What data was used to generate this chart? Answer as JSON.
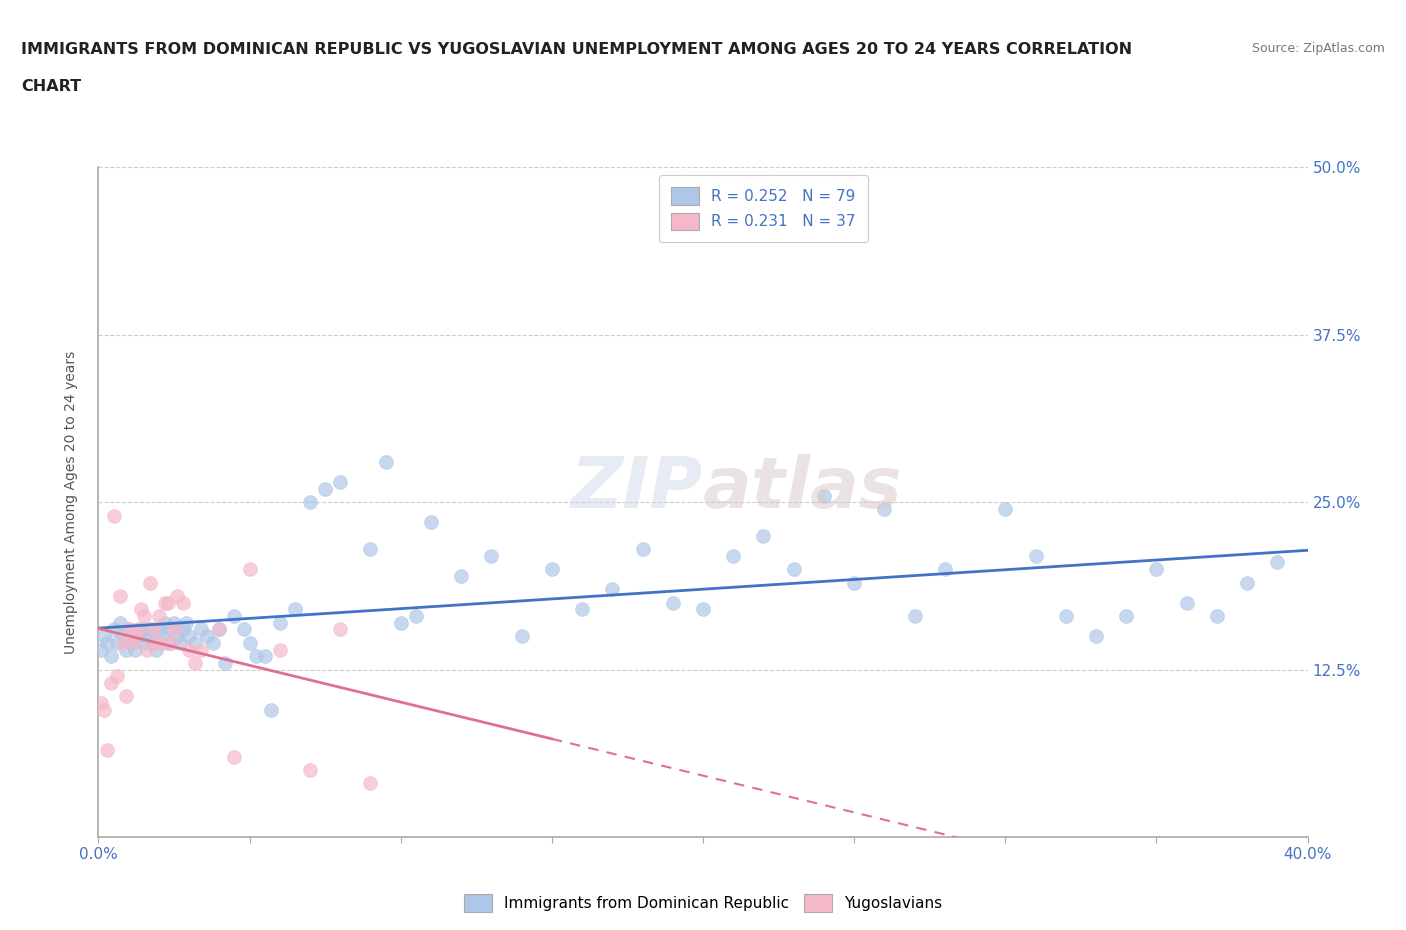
{
  "title_line1": "IMMIGRANTS FROM DOMINICAN REPUBLIC VS YUGOSLAVIAN UNEMPLOYMENT AMONG AGES 20 TO 24 YEARS CORRELATION",
  "title_line2": "CHART",
  "source": "Source: ZipAtlas.com",
  "ylabel_label": "Unemployment Among Ages 20 to 24 years",
  "legend_labels": [
    "Immigrants from Dominican Republic",
    "Yugoslavians"
  ],
  "r_blue": 0.252,
  "n_blue": 79,
  "r_pink": 0.231,
  "n_pink": 37,
  "blue_color": "#aec6e8",
  "blue_line_color": "#4472c4",
  "pink_color": "#f4b8c8",
  "pink_line_color": "#e07090",
  "axis_label_color": "#4472c4",
  "title_color": "#222222",
  "xlim": [
    0.0,
    0.4
  ],
  "ylim": [
    0.0,
    0.5
  ],
  "grid_color": "#c8c8c8",
  "blue_scatter_x": [
    0.001,
    0.002,
    0.003,
    0.004,
    0.005,
    0.006,
    0.007,
    0.008,
    0.009,
    0.01,
    0.011,
    0.012,
    0.013,
    0.014,
    0.015,
    0.016,
    0.017,
    0.018,
    0.019,
    0.02,
    0.021,
    0.022,
    0.023,
    0.024,
    0.025,
    0.026,
    0.027,
    0.028,
    0.029,
    0.03,
    0.032,
    0.034,
    0.036,
    0.038,
    0.04,
    0.042,
    0.045,
    0.05,
    0.055,
    0.06,
    0.065,
    0.07,
    0.075,
    0.08,
    0.09,
    0.1,
    0.11,
    0.12,
    0.13,
    0.14,
    0.15,
    0.16,
    0.17,
    0.18,
    0.19,
    0.2,
    0.21,
    0.22,
    0.23,
    0.24,
    0.25,
    0.26,
    0.27,
    0.28,
    0.3,
    0.31,
    0.32,
    0.33,
    0.34,
    0.35,
    0.36,
    0.37,
    0.38,
    0.39,
    0.048,
    0.052,
    0.057,
    0.095,
    0.105
  ],
  "blue_scatter_y": [
    0.14,
    0.15,
    0.145,
    0.135,
    0.155,
    0.145,
    0.16,
    0.15,
    0.14,
    0.155,
    0.145,
    0.14,
    0.15,
    0.155,
    0.145,
    0.15,
    0.155,
    0.145,
    0.14,
    0.155,
    0.15,
    0.16,
    0.145,
    0.155,
    0.16,
    0.15,
    0.145,
    0.155,
    0.16,
    0.15,
    0.145,
    0.155,
    0.15,
    0.145,
    0.155,
    0.13,
    0.165,
    0.145,
    0.135,
    0.16,
    0.17,
    0.25,
    0.26,
    0.265,
    0.215,
    0.16,
    0.235,
    0.195,
    0.21,
    0.15,
    0.2,
    0.17,
    0.185,
    0.215,
    0.175,
    0.17,
    0.21,
    0.225,
    0.2,
    0.255,
    0.19,
    0.245,
    0.165,
    0.2,
    0.245,
    0.21,
    0.165,
    0.15,
    0.165,
    0.2,
    0.175,
    0.165,
    0.19,
    0.205,
    0.155,
    0.135,
    0.095,
    0.28,
    0.165
  ],
  "pink_scatter_x": [
    0.001,
    0.002,
    0.003,
    0.004,
    0.005,
    0.006,
    0.007,
    0.008,
    0.009,
    0.01,
    0.011,
    0.012,
    0.013,
    0.014,
    0.015,
    0.016,
    0.017,
    0.018,
    0.019,
    0.02,
    0.021,
    0.022,
    0.023,
    0.024,
    0.025,
    0.026,
    0.028,
    0.03,
    0.032,
    0.034,
    0.04,
    0.045,
    0.05,
    0.06,
    0.07,
    0.08,
    0.09
  ],
  "pink_scatter_y": [
    0.1,
    0.095,
    0.065,
    0.115,
    0.24,
    0.12,
    0.18,
    0.145,
    0.105,
    0.155,
    0.145,
    0.15,
    0.155,
    0.17,
    0.165,
    0.14,
    0.19,
    0.155,
    0.145,
    0.165,
    0.145,
    0.175,
    0.175,
    0.145,
    0.155,
    0.18,
    0.175,
    0.14,
    0.13,
    0.14,
    0.155,
    0.06,
    0.2,
    0.14,
    0.05,
    0.155,
    0.04
  ]
}
